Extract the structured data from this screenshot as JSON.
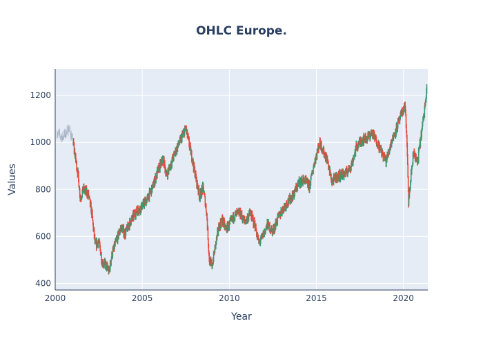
{
  "chart_data": {
    "type": "ohlc",
    "title": "OHLC Europe.",
    "xlabel": "Year",
    "ylabel": "Values",
    "xlim": [
      2000.0,
      2021.4
    ],
    "ylim": [
      372,
      1312
    ],
    "x_ticks": [
      2000,
      2005,
      2010,
      2015,
      2020
    ],
    "y_ticks": [
      400,
      600,
      800,
      1000,
      1200
    ],
    "grid": true,
    "legend": "none",
    "colors": {
      "increasing": "#3d9970",
      "decreasing": "#e8483b",
      "background": "#e5ecf6",
      "grid": "#ffffff",
      "text": "#2a3f5f"
    },
    "series": [
      {
        "name": "",
        "x": [
          2000.1,
          2000.4,
          2000.8,
          2001.05,
          2001.15,
          2001.3,
          2001.45,
          2001.6,
          2001.75,
          2001.9,
          2002.1,
          2002.3,
          2002.5,
          2002.7,
          2002.9,
          2003.1,
          2003.25,
          2003.5,
          2003.8,
          2004.0,
          2004.3,
          2004.6,
          2005.0,
          2005.3,
          2005.6,
          2005.9,
          2006.2,
          2006.4,
          2006.6,
          2006.9,
          2007.2,
          2007.5,
          2007.7,
          2007.9,
          2008.1,
          2008.3,
          2008.5,
          2008.7,
          2008.85,
          2009.0,
          2009.2,
          2009.4,
          2009.6,
          2009.8,
          2010.0,
          2010.3,
          2010.6,
          2010.9,
          2011.2,
          2011.5,
          2011.7,
          2011.9,
          2012.2,
          2012.5,
          2012.8,
          2013.1,
          2013.4,
          2013.7,
          2014.0,
          2014.3,
          2014.6,
          2014.9,
          2015.2,
          2015.4,
          2015.6,
          2015.9,
          2016.1,
          2016.4,
          2016.7,
          2017.0,
          2017.3,
          2017.6,
          2017.9,
          2018.2,
          2018.5,
          2018.8,
          2019.0,
          2019.3,
          2019.6,
          2019.9,
          2020.1,
          2020.2,
          2020.3,
          2020.45,
          2020.6,
          2020.8,
          2021.0,
          2021.2,
          2021.35
        ],
        "close": [
          1040,
          1020,
          1060,
          990,
          940,
          870,
          760,
          800,
          790,
          780,
          700,
          560,
          580,
          490,
          480,
          450,
          520,
          580,
          640,
          610,
          660,
          700,
          730,
          760,
          810,
          880,
          930,
          860,
          900,
          960,
          1010,
          1060,
          990,
          920,
          840,
          770,
          810,
          700,
          500,
          470,
          560,
          640,
          670,
          630,
          650,
          690,
          700,
          660,
          700,
          640,
          570,
          600,
          650,
          620,
          680,
          720,
          750,
          780,
          830,
          840,
          810,
          920,
          1000,
          960,
          930,
          830,
          850,
          860,
          870,
          900,
          980,
          1010,
          1020,
          1040,
          1000,
          950,
          920,
          1000,
          1060,
          1120,
          1160,
          1000,
          740,
          870,
          960,
          910,
          1020,
          1130,
          1250
        ]
      }
    ]
  }
}
